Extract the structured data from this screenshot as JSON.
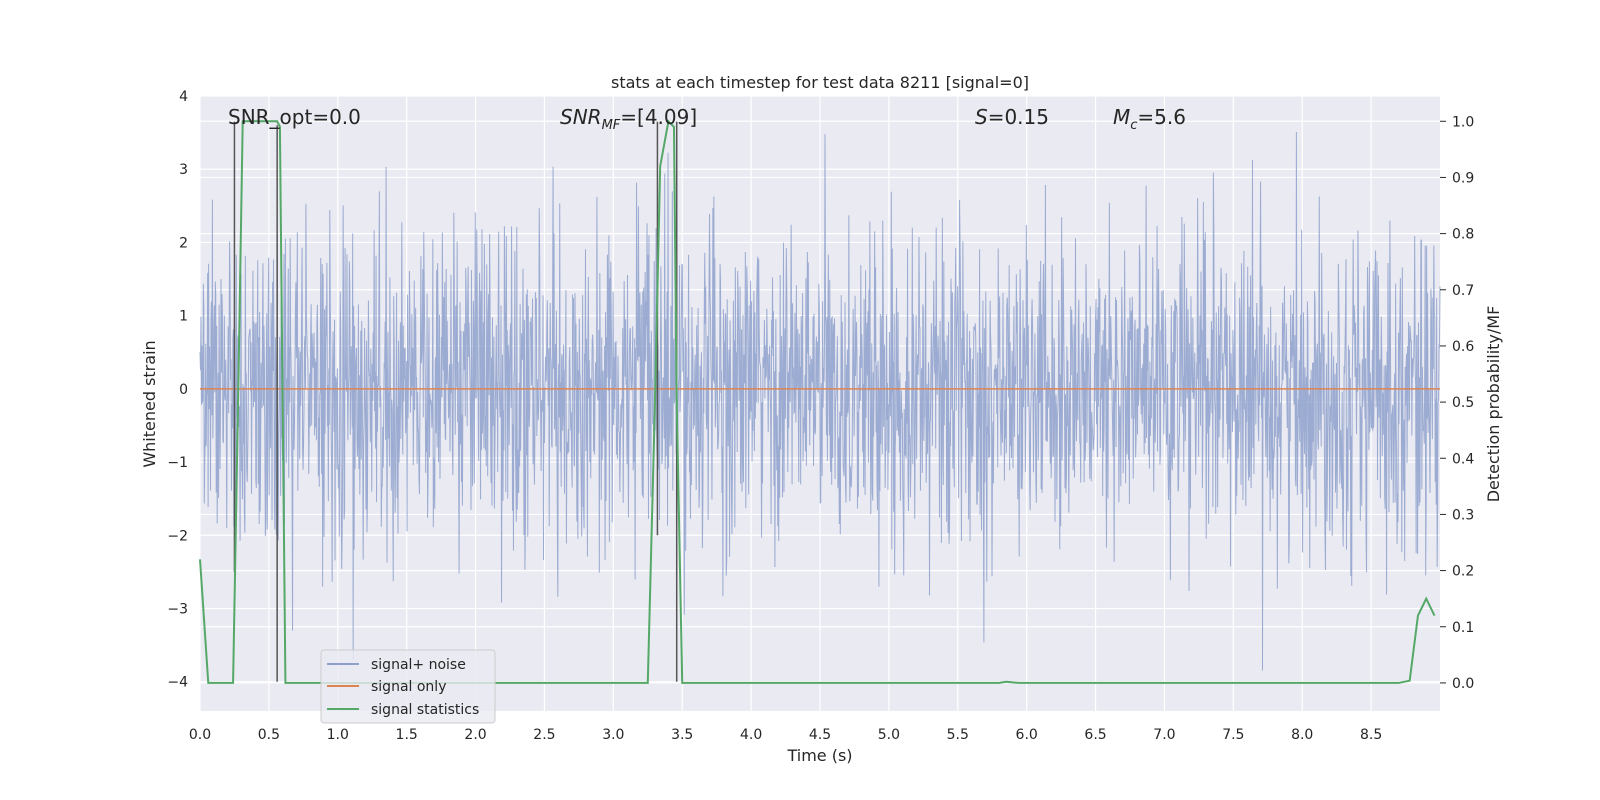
{
  "chart_data": {
    "type": "line",
    "title": "stats at each timestep for test data 8211 [signal=0]",
    "xlabel": "Time (s)",
    "ylabel_left": "Whitened strain",
    "ylabel_right": "Detection probability/MF",
    "xlim": [
      0.0,
      9.0
    ],
    "ylim_left": [
      -4.4,
      4.0
    ],
    "ylim_right": [
      -0.05,
      1.045
    ],
    "x_ticks": [
      "0.0",
      "0.5",
      "1.0",
      "1.5",
      "2.0",
      "2.5",
      "3.0",
      "3.5",
      "4.0",
      "4.5",
      "5.0",
      "5.5",
      "6.0",
      "6.5",
      "7.0",
      "7.5",
      "8.0",
      "8.5"
    ],
    "y_ticks_left": [
      "4",
      "3",
      "2",
      "1",
      "0",
      "−1",
      "−2",
      "−3",
      "−4"
    ],
    "y_ticks_right": [
      "1.0",
      "0.9",
      "0.8",
      "0.7",
      "0.6",
      "0.5",
      "0.4",
      "0.3",
      "0.2",
      "0.1",
      "0.0"
    ],
    "grid": true,
    "legend_position": "lower-left",
    "colors": {
      "background": "#eaeaf2",
      "grid": "#ffffff",
      "noise": "#8da0cb",
      "signal_only": "#dd8452",
      "statistics": "#55a868",
      "markers": "#555555"
    },
    "annotations": {
      "snr_opt": "SNR_opt=0.0",
      "snr_mf_base": "SNR",
      "snr_mf_sub": "MF",
      "snr_mf_value": "=[4.09]",
      "s_label": "S",
      "s_value": "=0.15",
      "mc_base": "M",
      "mc_sub": "c",
      "mc_value": "=5.6"
    },
    "series": [
      {
        "name": "signal+ noise",
        "axis": "left",
        "description_stats": {
          "mean": 0.0,
          "typical_range": [
            -1.7,
            1.7
          ],
          "max": 3.65,
          "min": -4.0
        }
      },
      {
        "name": "signal only",
        "axis": "left",
        "values": {
          "x": [
            0.0,
            9.0
          ],
          "y": [
            0.0,
            0.0
          ]
        }
      },
      {
        "name": "signal statistics",
        "axis": "right",
        "x": [
          0.0,
          0.06,
          0.24,
          0.28,
          0.31,
          0.56,
          0.58,
          0.62,
          0.7,
          3.25,
          3.3,
          3.34,
          3.4,
          3.44,
          3.46,
          3.5,
          3.6,
          5.8,
          5.85,
          5.95,
          6.0,
          8.7,
          8.78,
          8.84,
          8.9,
          8.96
        ],
        "y": [
          0.22,
          0.0,
          0.0,
          0.55,
          1.0,
          1.0,
          0.99,
          0.0,
          0.0,
          0.0,
          0.48,
          0.92,
          1.0,
          0.99,
          0.5,
          0.0,
          0.0,
          0.0,
          0.002,
          0.0,
          0.0,
          0.0,
          0.004,
          0.12,
          0.15,
          0.12
        ]
      }
    ],
    "marker_lines": [
      {
        "x": 0.25,
        "y_top": 3.65,
        "y_bottom": -2.5
      },
      {
        "x": 0.56,
        "y_top": 3.6,
        "y_bottom": -4.0
      },
      {
        "x": 3.32,
        "y_top": 3.65,
        "y_bottom": -2.0
      },
      {
        "x": 3.46,
        "y_top": 3.65,
        "y_bottom": -4.0
      }
    ]
  }
}
